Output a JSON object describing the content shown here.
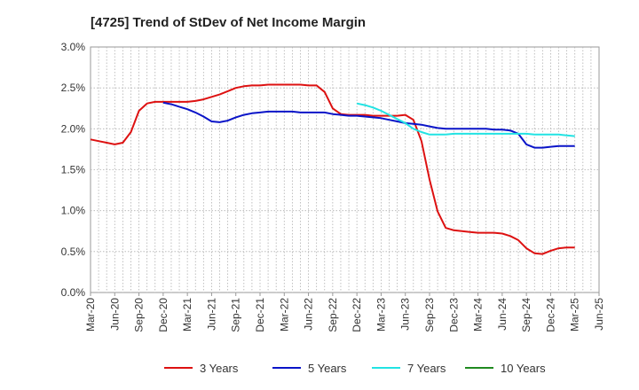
{
  "chart_data": {
    "type": "line",
    "title": "[4725]  Trend of StDev of Net Income Margin",
    "xlabel": "",
    "ylabel": "",
    "ylim": [
      0,
      0.03
    ],
    "y_ticks": [
      0,
      0.005,
      0.01,
      0.015,
      0.02,
      0.025,
      0.03
    ],
    "y_tick_labels": [
      "0.0%",
      "0.5%",
      "1.0%",
      "1.5%",
      "2.0%",
      "2.5%",
      "3.0%"
    ],
    "x_ticks": [
      "2020-03",
      "2020-06",
      "2020-09",
      "2020-12",
      "2021-03",
      "2021-06",
      "2021-09",
      "2021-12",
      "2022-03",
      "2022-06",
      "2022-09",
      "2022-12",
      "2023-03",
      "2023-06",
      "2023-09",
      "2023-12",
      "2024-03",
      "2024-06",
      "2024-09",
      "2024-12",
      "2025-03",
      "2025-06"
    ],
    "x_tick_labels": [
      "Mar-20",
      "Jun-20",
      "Sep-20",
      "Dec-20",
      "Mar-21",
      "Jun-21",
      "Sep-21",
      "Dec-21",
      "Mar-22",
      "Jun-22",
      "Sep-22",
      "Dec-22",
      "Mar-23",
      "Jun-23",
      "Sep-23",
      "Dec-23",
      "Mar-24",
      "Jun-24",
      "Sep-24",
      "Dec-24",
      "Mar-25",
      "Jun-25"
    ],
    "grid": true,
    "legend_position": "bottom",
    "series": [
      {
        "name": "3 Years",
        "color": "#dd1111",
        "x": [
          "2020-03",
          "2020-04",
          "2020-05",
          "2020-06",
          "2020-07",
          "2020-08",
          "2020-09",
          "2020-10",
          "2020-11",
          "2020-12",
          "2021-01",
          "2021-02",
          "2021-03",
          "2021-04",
          "2021-05",
          "2021-06",
          "2021-07",
          "2021-08",
          "2021-09",
          "2021-10",
          "2021-11",
          "2021-12",
          "2022-01",
          "2022-02",
          "2022-03",
          "2022-04",
          "2022-05",
          "2022-06",
          "2022-07",
          "2022-08",
          "2022-09",
          "2022-10",
          "2022-11",
          "2022-12",
          "2023-01",
          "2023-02",
          "2023-03",
          "2023-04",
          "2023-05",
          "2023-06",
          "2023-07",
          "2023-08",
          "2023-09",
          "2023-10",
          "2023-11",
          "2023-12",
          "2024-01",
          "2024-02",
          "2024-03",
          "2024-04",
          "2024-05",
          "2024-06",
          "2024-07",
          "2024-08",
          "2024-09",
          "2024-10",
          "2024-11",
          "2024-12",
          "2025-01",
          "2025-02",
          "2025-03"
        ],
        "values": [
          0.0187,
          0.0185,
          0.0183,
          0.0181,
          0.0183,
          0.0196,
          0.0222,
          0.0231,
          0.0233,
          0.0233,
          0.0233,
          0.0233,
          0.0233,
          0.0234,
          0.0236,
          0.0239,
          0.0242,
          0.0246,
          0.025,
          0.0252,
          0.0253,
          0.0253,
          0.0254,
          0.0254,
          0.0254,
          0.0254,
          0.0254,
          0.0253,
          0.0253,
          0.0245,
          0.0225,
          0.0218,
          0.0217,
          0.0217,
          0.0217,
          0.0216,
          0.0216,
          0.0216,
          0.0216,
          0.0217,
          0.0211,
          0.0185,
          0.0138,
          0.0099,
          0.0079,
          0.0076,
          0.0075,
          0.0074,
          0.0073,
          0.0073,
          0.0073,
          0.0072,
          0.0069,
          0.0064,
          0.0054,
          0.0048,
          0.0047,
          0.0051,
          0.0054,
          0.0055,
          0.0055
        ]
      },
      {
        "name": "5 Years",
        "color": "#0a14c8",
        "x": [
          "2020-12",
          "2021-01",
          "2021-02",
          "2021-03",
          "2021-04",
          "2021-05",
          "2021-06",
          "2021-07",
          "2021-08",
          "2021-09",
          "2021-10",
          "2021-11",
          "2021-12",
          "2022-01",
          "2022-02",
          "2022-03",
          "2022-04",
          "2022-05",
          "2022-06",
          "2022-07",
          "2022-08",
          "2022-09",
          "2022-10",
          "2022-11",
          "2022-12",
          "2023-01",
          "2023-02",
          "2023-03",
          "2023-04",
          "2023-05",
          "2023-06",
          "2023-07",
          "2023-08",
          "2023-09",
          "2023-10",
          "2023-11",
          "2023-12",
          "2024-01",
          "2024-02",
          "2024-03",
          "2024-04",
          "2024-05",
          "2024-06",
          "2024-07",
          "2024-08",
          "2024-09",
          "2024-10",
          "2024-11",
          "2024-12",
          "2025-01",
          "2025-02",
          "2025-03"
        ],
        "values": [
          0.0232,
          0.023,
          0.0227,
          0.0224,
          0.022,
          0.0215,
          0.0209,
          0.0208,
          0.021,
          0.0214,
          0.0217,
          0.0219,
          0.022,
          0.0221,
          0.0221,
          0.0221,
          0.0221,
          0.022,
          0.022,
          0.022,
          0.022,
          0.0218,
          0.0217,
          0.0216,
          0.0216,
          0.0215,
          0.0214,
          0.0213,
          0.0211,
          0.0209,
          0.0207,
          0.0206,
          0.0205,
          0.0203,
          0.0201,
          0.02,
          0.02,
          0.02,
          0.02,
          0.02,
          0.02,
          0.0199,
          0.0199,
          0.0198,
          0.0194,
          0.0181,
          0.0177,
          0.0177,
          0.0178,
          0.0179,
          0.0179,
          0.0179
        ]
      },
      {
        "name": "7 Years",
        "color": "#22e3e3",
        "x": [
          "2022-12",
          "2023-01",
          "2023-02",
          "2023-03",
          "2023-04",
          "2023-05",
          "2023-06",
          "2023-07",
          "2023-08",
          "2023-09",
          "2023-10",
          "2023-11",
          "2023-12",
          "2024-01",
          "2024-02",
          "2024-03",
          "2024-04",
          "2024-05",
          "2024-06",
          "2024-07",
          "2024-08",
          "2024-09",
          "2024-10",
          "2024-11",
          "2024-12",
          "2025-01",
          "2025-02",
          "2025-03"
        ],
        "values": [
          0.0231,
          0.0229,
          0.0226,
          0.0222,
          0.0217,
          0.0212,
          0.0207,
          0.02,
          0.0196,
          0.0193,
          0.0193,
          0.0193,
          0.0194,
          0.0194,
          0.0194,
          0.0194,
          0.0194,
          0.0194,
          0.0194,
          0.0194,
          0.0194,
          0.0194,
          0.0193,
          0.0193,
          0.0193,
          0.0193,
          0.0192,
          0.0191
        ]
      },
      {
        "name": "10 Years",
        "color": "#1f8a1f",
        "x": [],
        "values": []
      }
    ]
  }
}
